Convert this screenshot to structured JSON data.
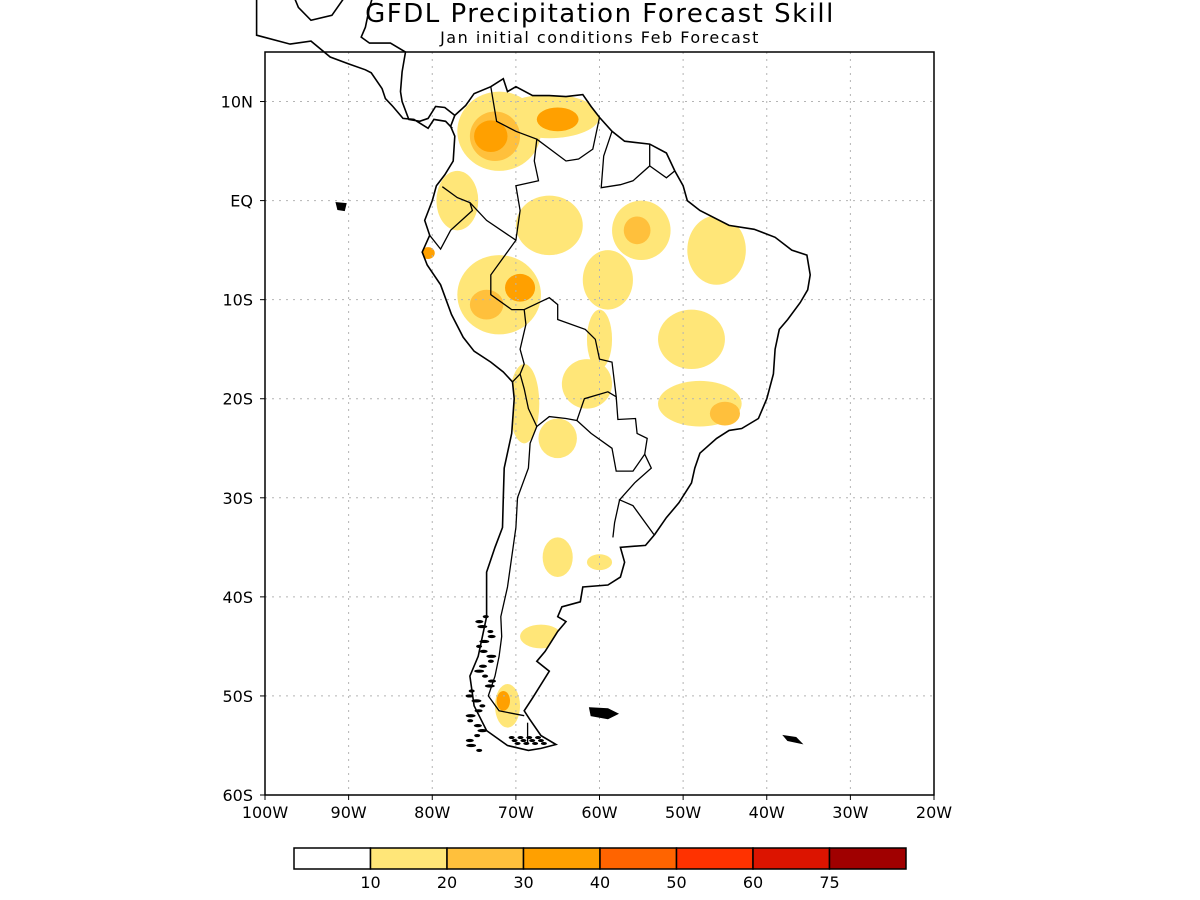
{
  "title": "GFDL Precipitation Forecast Skill",
  "subtitle": "Jan initial conditions  Feb Forecast",
  "map": {
    "lon_range": [
      -100,
      -20
    ],
    "lat_range": [
      -60,
      15
    ],
    "x_ticks": [
      {
        "lon": -100,
        "label": "100W"
      },
      {
        "lon": -90,
        "label": "90W"
      },
      {
        "lon": -80,
        "label": "80W"
      },
      {
        "lon": -70,
        "label": "70W"
      },
      {
        "lon": -60,
        "label": "60W"
      },
      {
        "lon": -50,
        "label": "50W"
      },
      {
        "lon": -40,
        "label": "40W"
      },
      {
        "lon": -30,
        "label": "30W"
      },
      {
        "lon": -20,
        "label": "20W"
      }
    ],
    "y_ticks": [
      {
        "lat": 10,
        "label": "10N"
      },
      {
        "lat": 0,
        "label": "EQ"
      },
      {
        "lat": -10,
        "label": "10S"
      },
      {
        "lat": -20,
        "label": "20S"
      },
      {
        "lat": -30,
        "label": "30S"
      },
      {
        "lat": -40,
        "label": "40S"
      },
      {
        "lat": -50,
        "label": "50S"
      },
      {
        "lat": -60,
        "label": "60S"
      }
    ],
    "grid": true
  },
  "legend": {
    "colors": [
      "#ffffff",
      "#ffe678",
      "#ffc03c",
      "#ffa000",
      "#ff6400",
      "#ff3200",
      "#dc1400",
      "#a00000"
    ],
    "labels": [
      "10",
      "20",
      "30",
      "40",
      "50",
      "60",
      "75"
    ]
  },
  "skill_regions": [
    {
      "level": 1,
      "lon": -72,
      "lat": 7,
      "rx": 5,
      "ry": 4
    },
    {
      "level": 2,
      "lon": -72.5,
      "lat": 6.5,
      "rx": 3,
      "ry": 2.5
    },
    {
      "level": 3,
      "lon": -73,
      "lat": 6.5,
      "rx": 2,
      "ry": 1.6
    },
    {
      "level": 1,
      "lon": -66,
      "lat": 8.5,
      "rx": 6,
      "ry": 2.2
    },
    {
      "level": 3,
      "lon": -65,
      "lat": 8.2,
      "rx": 2.5,
      "ry": 1.2
    },
    {
      "level": 1,
      "lon": -77,
      "lat": 0,
      "rx": 2.5,
      "ry": 3
    },
    {
      "level": 3,
      "lon": -80.5,
      "lat": -5.3,
      "rx": 0.8,
      "ry": 0.6
    },
    {
      "level": 1,
      "lon": -66,
      "lat": -2.5,
      "rx": 4,
      "ry": 3
    },
    {
      "level": 1,
      "lon": -55,
      "lat": -3,
      "rx": 3.5,
      "ry": 3
    },
    {
      "level": 2,
      "lon": -55.5,
      "lat": -3,
      "rx": 1.6,
      "ry": 1.4
    },
    {
      "level": 1,
      "lon": -46,
      "lat": -5,
      "rx": 3.5,
      "ry": 3.5
    },
    {
      "level": 1,
      "lon": -59,
      "lat": -8,
      "rx": 3,
      "ry": 3
    },
    {
      "level": 1,
      "lon": -72,
      "lat": -9.5,
      "rx": 5,
      "ry": 4
    },
    {
      "level": 3,
      "lon": -69.5,
      "lat": -8.8,
      "rx": 1.8,
      "ry": 1.4
    },
    {
      "level": 2,
      "lon": -73.5,
      "lat": -10.5,
      "rx": 2,
      "ry": 1.5
    },
    {
      "level": 1,
      "lon": -49,
      "lat": -14,
      "rx": 4,
      "ry": 3
    },
    {
      "level": 1,
      "lon": -60,
      "lat": -14,
      "rx": 1.5,
      "ry": 3
    },
    {
      "level": 1,
      "lon": -61.5,
      "lat": -18.5,
      "rx": 3,
      "ry": 2.5
    },
    {
      "level": 1,
      "lon": -48,
      "lat": -20.5,
      "rx": 5,
      "ry": 2.3
    },
    {
      "level": 2,
      "lon": -45,
      "lat": -21.5,
      "rx": 1.8,
      "ry": 1.2
    },
    {
      "level": 1,
      "lon": -69,
      "lat": -20.5,
      "rx": 1.8,
      "ry": 4
    },
    {
      "level": 1,
      "lon": -65,
      "lat": -24,
      "rx": 2.3,
      "ry": 2
    },
    {
      "level": 1,
      "lon": -65,
      "lat": -36,
      "rx": 1.8,
      "ry": 2
    },
    {
      "level": 1,
      "lon": -60,
      "lat": -36.5,
      "rx": 1.5,
      "ry": 0.8
    },
    {
      "level": 1,
      "lon": -67,
      "lat": -44,
      "rx": 2.5,
      "ry": 1.2
    },
    {
      "level": 1,
      "lon": -71,
      "lat": -51,
      "rx": 1.5,
      "ry": 2.2
    },
    {
      "level": 3,
      "lon": -71.5,
      "lat": -50.5,
      "rx": 0.8,
      "ry": 1
    }
  ]
}
